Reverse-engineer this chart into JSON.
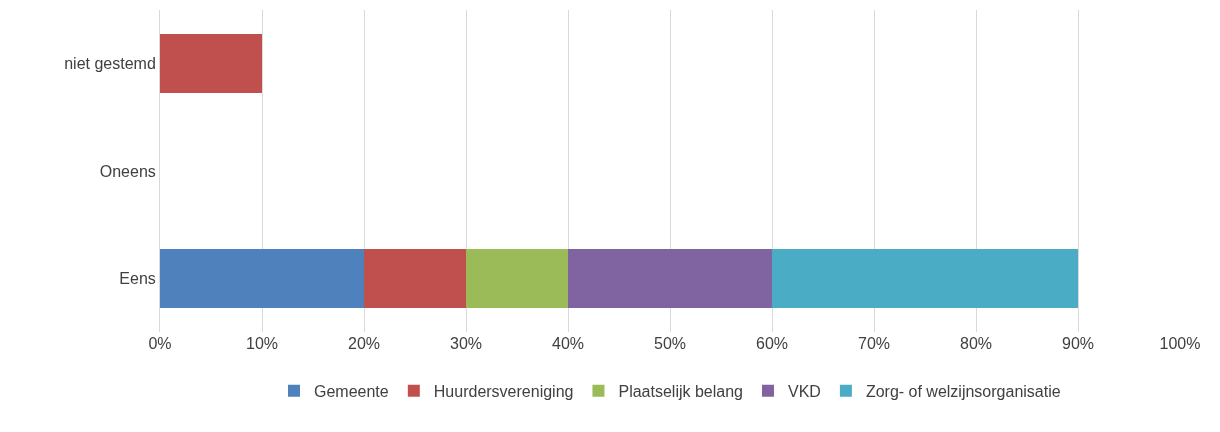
{
  "chart_data": {
    "type": "bar",
    "orientation": "horizontal",
    "stacked": true,
    "categories": [
      "niet gestemd",
      "Oneens",
      "Eens"
    ],
    "series": [
      {
        "name": "Gemeente",
        "color": "#4f81bd",
        "values": [
          0,
          0,
          20
        ]
      },
      {
        "name": "Huurdersvereniging",
        "color": "#c0504d",
        "values": [
          10,
          0,
          10
        ]
      },
      {
        "name": "Plaatselijk belang",
        "color": "#9bbb59",
        "values": [
          0,
          0,
          10
        ]
      },
      {
        "name": "VKD",
        "color": "#8064a2",
        "values": [
          0,
          0,
          20
        ]
      },
      {
        "name": "Zorg- of welzijnsorganisatie",
        "color": "#4bacc6",
        "values": [
          0,
          0,
          30
        ]
      }
    ],
    "xlim": [
      0,
      100
    ],
    "xticks": [
      {
        "value": 0,
        "label": "0%"
      },
      {
        "value": 10,
        "label": "10%"
      },
      {
        "value": 20,
        "label": "20%"
      },
      {
        "value": 30,
        "label": "30%"
      },
      {
        "value": 40,
        "label": "40%"
      },
      {
        "value": 50,
        "label": "50%"
      },
      {
        "value": 60,
        "label": "60%"
      },
      {
        "value": 70,
        "label": "70%"
      },
      {
        "value": 80,
        "label": "80%"
      },
      {
        "value": 90,
        "label": "90%"
      },
      {
        "value": 100,
        "label": "100%"
      }
    ],
    "grid": "x",
    "legend": "bottom"
  }
}
